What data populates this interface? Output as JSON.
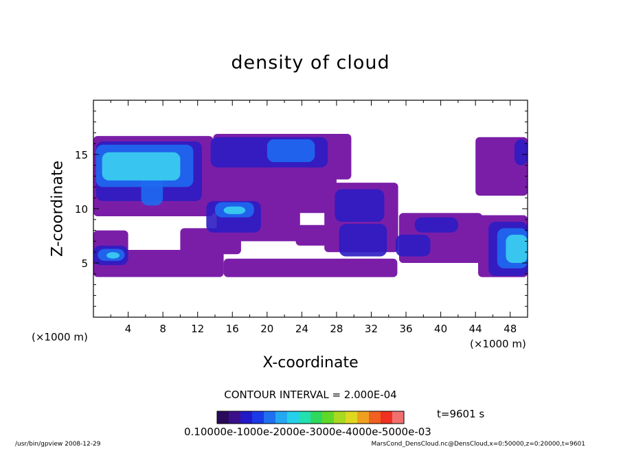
{
  "chart_data": {
    "type": "heatmap",
    "title": "density of cloud",
    "xlabel": "X-coordinate",
    "ylabel": "Z-coordinate",
    "x_unit_label": "(×1000 m)",
    "y_unit_label": "(×1000 m)",
    "xlim": [
      0,
      50
    ],
    "ylim": [
      0,
      20
    ],
    "x_ticks": [
      4,
      8,
      12,
      16,
      20,
      24,
      28,
      32,
      36,
      40,
      44,
      48
    ],
    "y_ticks": [
      5,
      10,
      15
    ],
    "contour_interval_label": "CONTOUR INTERVAL = 2.000E-04",
    "time_label": "t=9601 s",
    "colorbar": {
      "min": 0.0001,
      "max": 0.0005,
      "labels_text": "0.10000e-1000e-2000e-3000e-4000e-5000e-03",
      "colors": [
        "#2a0a5a",
        "#3b0f8a",
        "#2218c8",
        "#1a3ae8",
        "#1e70f0",
        "#25a8f2",
        "#26d0ea",
        "#22e0b0",
        "#2ed860",
        "#60d828",
        "#a8d820",
        "#e0d820",
        "#f0a020",
        "#f06020",
        "#f03020",
        "#f07070"
      ]
    },
    "clouds": [
      {
        "x0": 0,
        "x1": 13.8,
        "z0": 9.3,
        "z1": 16.7,
        "level": 1
      },
      {
        "x0": 13.8,
        "x1": 29.7,
        "z0": 12.7,
        "z1": 16.9,
        "level": 1
      },
      {
        "x0": 10,
        "x1": 28,
        "z0": 9.6,
        "z1": 14.0,
        "level": 1
      },
      {
        "x0": 14.2,
        "x1": 23.8,
        "z0": 7.0,
        "z1": 11.2,
        "level": 1
      },
      {
        "x0": 26.6,
        "x1": 35.1,
        "z0": 6.0,
        "z1": 12.4,
        "level": 1
      },
      {
        "x0": 35.2,
        "x1": 44.8,
        "z0": 5.0,
        "z1": 9.6,
        "level": 1
      },
      {
        "x0": 44.3,
        "x1": 50,
        "z0": 3.7,
        "z1": 9.4,
        "level": 1
      },
      {
        "x0": 0,
        "x1": 15.0,
        "z0": 3.7,
        "z1": 6.2,
        "level": 1
      },
      {
        "x0": 0,
        "x1": 4.0,
        "z0": 4.0,
        "z1": 8.0,
        "level": 1
      },
      {
        "x0": 15.0,
        "x1": 35.0,
        "z0": 3.7,
        "z1": 5.4,
        "level": 1
      },
      {
        "x0": 10,
        "x1": 17,
        "z0": 5.8,
        "z1": 8.2,
        "level": 1
      },
      {
        "x0": 23.3,
        "x1": 29.0,
        "z0": 6.6,
        "z1": 8.5,
        "level": 1
      },
      {
        "x0": 44.0,
        "x1": 50,
        "z0": 11.2,
        "z1": 16.6,
        "level": 1
      },
      {
        "x0": 0.3,
        "x1": 12.5,
        "z0": 10.7,
        "z1": 16.2,
        "level": 2
      },
      {
        "x0": 13.5,
        "x1": 27.0,
        "z0": 13.8,
        "z1": 16.6,
        "level": 2
      },
      {
        "x0": 13.0,
        "x1": 19.3,
        "z0": 7.8,
        "z1": 10.7,
        "level": 2
      },
      {
        "x0": 27.8,
        "x1": 33.5,
        "z0": 8.8,
        "z1": 11.8,
        "level": 2
      },
      {
        "x0": 37.0,
        "x1": 42.0,
        "z0": 7.8,
        "z1": 9.2,
        "level": 2
      },
      {
        "x0": 34.8,
        "x1": 38.8,
        "z0": 5.6,
        "z1": 7.6,
        "level": 2
      },
      {
        "x0": 28.3,
        "x1": 33.8,
        "z0": 5.6,
        "z1": 8.6,
        "level": 2
      },
      {
        "x0": 45.5,
        "x1": 50,
        "z0": 3.8,
        "z1": 8.8,
        "level": 2
      },
      {
        "x0": 0,
        "x1": 4.0,
        "z0": 4.8,
        "z1": 6.6,
        "level": 2
      },
      {
        "x0": 48.5,
        "x1": 50,
        "z0": 14.0,
        "z1": 16.4,
        "level": 2
      },
      {
        "x0": 0.3,
        "x1": 11.5,
        "z0": 12.0,
        "z1": 15.9,
        "level": 3
      },
      {
        "x0": 5.5,
        "x1": 8.0,
        "z0": 10.3,
        "z1": 13.2,
        "level": 3
      },
      {
        "x0": 14.0,
        "x1": 18.5,
        "z0": 9.2,
        "z1": 10.6,
        "level": 3
      },
      {
        "x0": 20.0,
        "x1": 25.5,
        "z0": 14.3,
        "z1": 16.4,
        "level": 3
      },
      {
        "x0": 46.5,
        "x1": 50,
        "z0": 4.5,
        "z1": 8.2,
        "level": 3
      },
      {
        "x0": 0.5,
        "x1": 3.6,
        "z0": 5.2,
        "z1": 6.3,
        "level": 3
      },
      {
        "x0": 1.0,
        "x1": 10.0,
        "z0": 12.6,
        "z1": 15.2,
        "level": 4
      },
      {
        "x0": 15.0,
        "x1": 17.5,
        "z0": 9.5,
        "z1": 10.2,
        "level": 4
      },
      {
        "x0": 47.5,
        "x1": 50,
        "z0": 5.0,
        "z1": 7.6,
        "level": 4
      },
      {
        "x0": 1.5,
        "x1": 3.0,
        "z0": 5.4,
        "z1": 6.0,
        "level": 4
      }
    ]
  },
  "footer": {
    "left": "/usr/bin/gpview   2008-12-29",
    "right": "MarsCond_DensCloud.nc@DensCloud,x=0:50000,z=0:20000,t=9601"
  },
  "palette": {
    "clear": "#ffffff",
    "level_1": "#7a1ea8",
    "level_2": "#2c1cc2",
    "level_3": "#1e6af0",
    "level_4": "#3bd0f0"
  }
}
